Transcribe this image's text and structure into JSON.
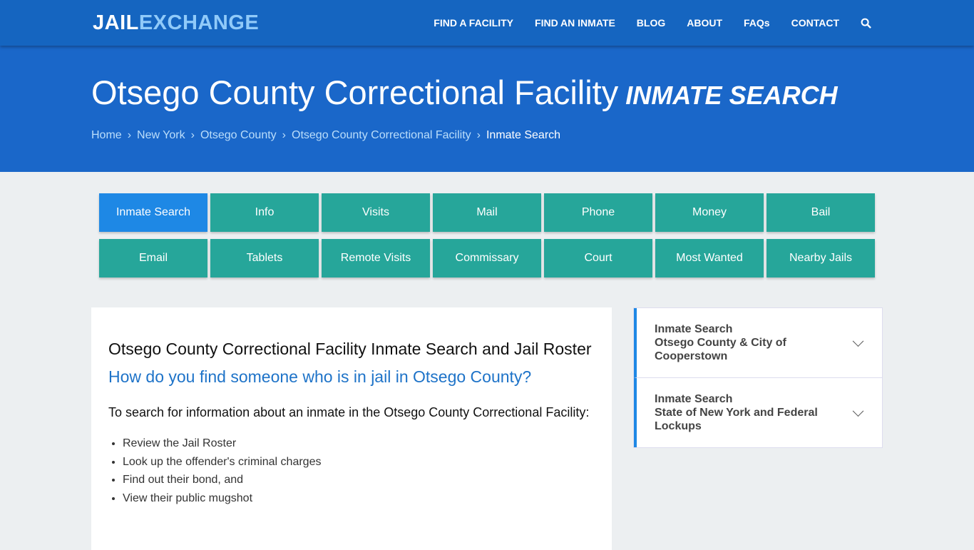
{
  "logo": {
    "part1": "JAIL",
    "part2": "EXCHANGE"
  },
  "nav": [
    "FIND A FACILITY",
    "FIND AN INMATE",
    "BLOG",
    "ABOUT",
    "FAQs",
    "CONTACT"
  ],
  "hero": {
    "title": "Otsego County Correctional Facility",
    "subtitle": "INMATE SEARCH"
  },
  "breadcrumb": [
    "Home",
    "New York",
    "Otsego County",
    "Otsego County Correctional Facility",
    "Inmate Search"
  ],
  "tabs": [
    "Inmate Search",
    "Info",
    "Visits",
    "Mail",
    "Phone",
    "Money",
    "Bail",
    "Email",
    "Tablets",
    "Remote Visits",
    "Commissary",
    "Court",
    "Most Wanted",
    "Nearby Jails"
  ],
  "main": {
    "heading": "Otsego County Correctional Facility Inmate Search and Jail Roster",
    "question": "How do you find someone who is in jail in Otsego County?",
    "intro": "To search for information about an inmate in the Otsego County Correctional Facility:",
    "list": [
      "Review the Jail Roster",
      "Look up the offender's criminal charges",
      "Find out their bond, and",
      "View their public mugshot"
    ]
  },
  "sidebar": [
    {
      "line1": "Inmate Search",
      "line2": "Otsego County & City of Cooperstown"
    },
    {
      "line1": "Inmate Search",
      "line2": "State of New York and Federal Lockups"
    }
  ]
}
